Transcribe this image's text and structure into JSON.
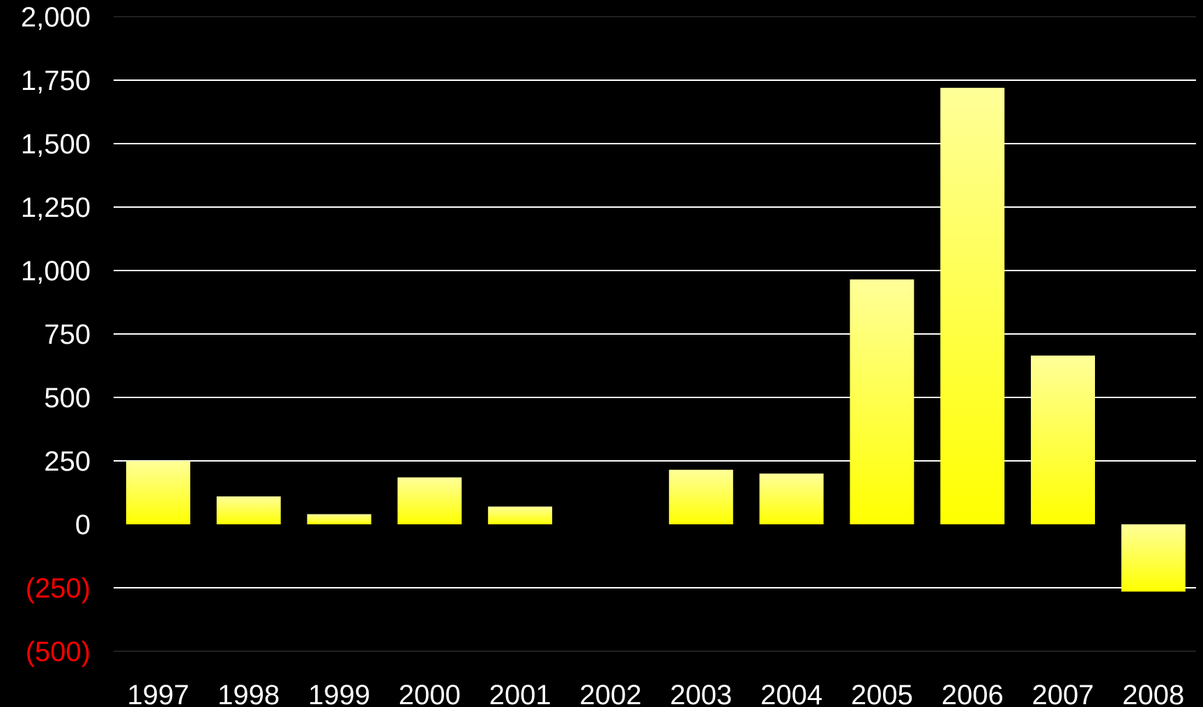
{
  "colors": {
    "background": "#000000",
    "gridline": "#FFFFFF",
    "positive_tick": "#FFFFFF",
    "negative_tick": "#FF0000",
    "bar_top": "#FFFF99",
    "bar_bottom": "#FFFF00",
    "category_label": "#FFFFFF"
  },
  "chart_data": {
    "type": "bar",
    "categories": [
      "1997",
      "1998",
      "1999",
      "2000",
      "2001",
      "2002",
      "2003",
      "2004",
      "2005",
      "2006",
      "2007",
      "2008"
    ],
    "values": [
      250,
      110,
      40,
      185,
      70,
      0,
      215,
      200,
      965,
      1720,
      665,
      -265
    ],
    "ylim": [
      -500,
      2000
    ],
    "yticks": [
      {
        "value": 2000,
        "label": "2,000"
      },
      {
        "value": 1750,
        "label": "1,750"
      },
      {
        "value": 1500,
        "label": "1,500"
      },
      {
        "value": 1250,
        "label": "1,250"
      },
      {
        "value": 1000,
        "label": "1,000"
      },
      {
        "value": 750,
        "label": "750"
      },
      {
        "value": 500,
        "label": "500"
      },
      {
        "value": 250,
        "label": "250"
      },
      {
        "value": 0,
        "label": "0"
      },
      {
        "value": -250,
        "label": "(250)"
      },
      {
        "value": -500,
        "label": "(500)"
      }
    ],
    "grid": true,
    "legend": "none"
  }
}
